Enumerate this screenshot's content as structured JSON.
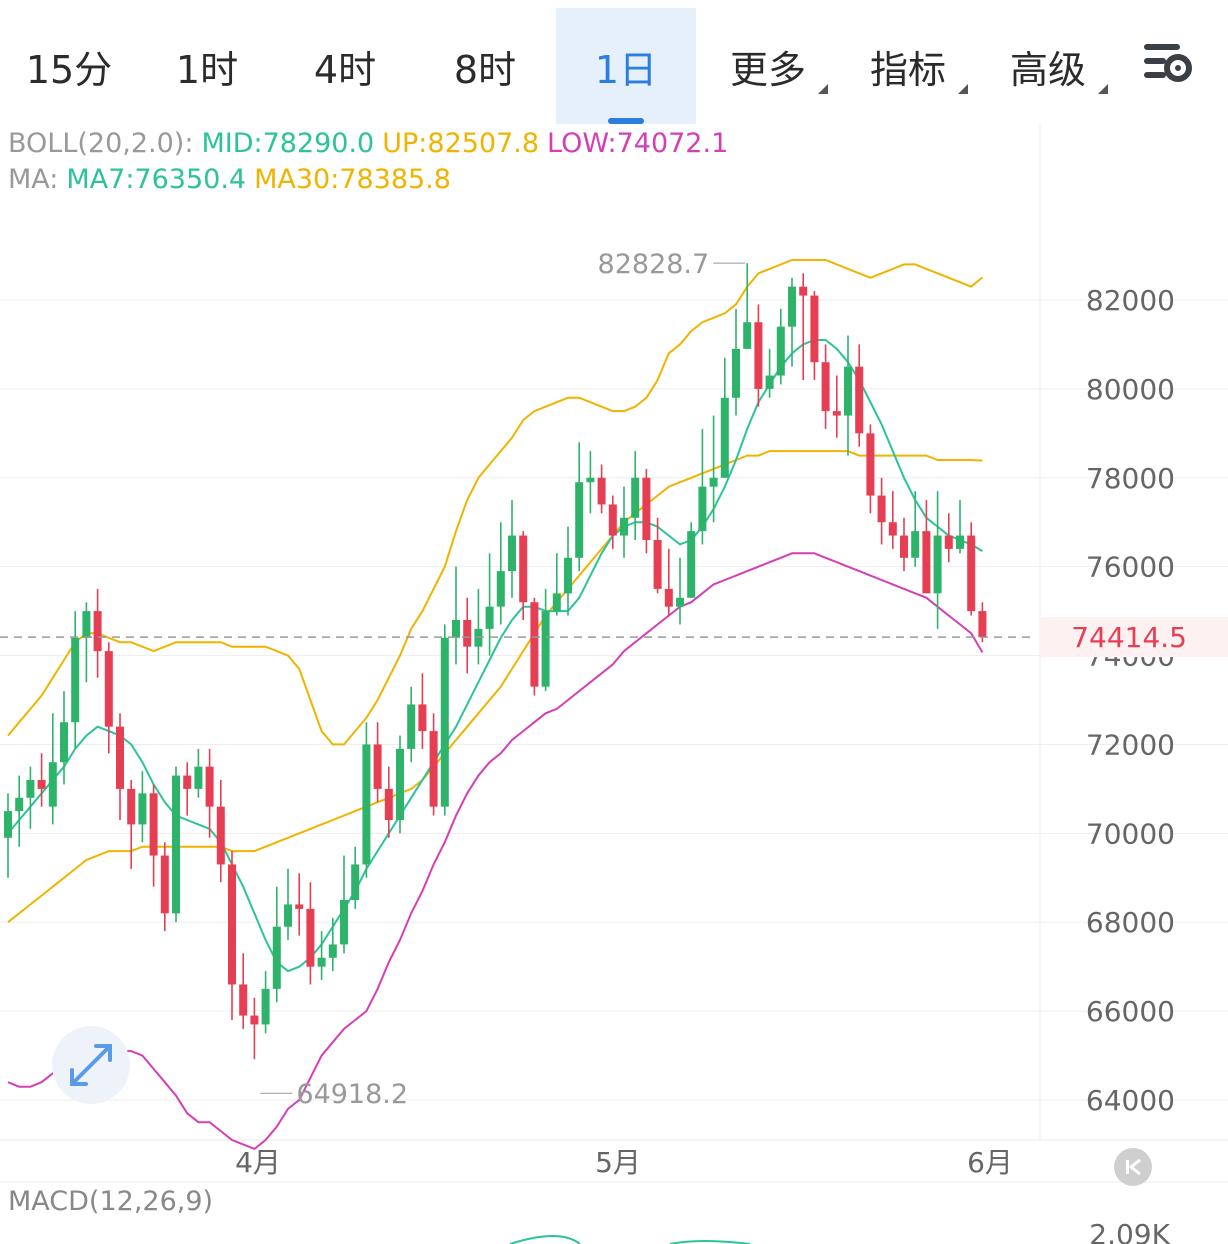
{
  "tabs": [
    {
      "label": "15分",
      "active": false,
      "caret": false
    },
    {
      "label": "1时",
      "active": false,
      "caret": false
    },
    {
      "label": "4时",
      "active": false,
      "caret": false
    },
    {
      "label": "8时",
      "active": false,
      "caret": false
    },
    {
      "label": "1日",
      "active": true,
      "caret": false
    },
    {
      "label": "更多",
      "active": false,
      "caret": true
    },
    {
      "label": "指标",
      "active": false,
      "caret": true
    },
    {
      "label": "高级",
      "active": false,
      "caret": true
    }
  ],
  "settings_icon": "chart-settings-icon",
  "boll": {
    "label": "BOLL(20,2.0):",
    "mid": "MID:78290.0",
    "up": "UP:82507.8",
    "low": "LOW:74072.1"
  },
  "ma": {
    "label": "MA:",
    "ma7": "MA7:76350.4",
    "ma30": "MA30:78385.8"
  },
  "macd": {
    "label": "MACD(12,26,9)",
    "tick": "2.09K"
  },
  "colors": {
    "rise": "#2db46a",
    "fall": "#e63e52",
    "mid": "#2cc39a",
    "up": "#f0b400",
    "low": "#d43fb5",
    "ma30": "#f0b400"
  },
  "chart_data": {
    "type": "candlestick",
    "y_ticks": [
      "82000",
      "80000",
      "78000",
      "76000",
      "74000",
      "72000",
      "70000",
      "68000",
      "66000",
      "64000"
    ],
    "x_labels": [
      "4月",
      "5月",
      "6月"
    ],
    "ylim": [
      63500,
      84000
    ],
    "high_annotation": "82828.7",
    "low_annotation": "64918.2",
    "last_price": "74414.5",
    "candles": [
      [
        69900,
        70500,
        70900,
        69000
      ],
      [
        70500,
        70800,
        71300,
        69700
      ],
      [
        70800,
        71200,
        71500,
        70100
      ],
      [
        71200,
        71000,
        71800,
        70600
      ],
      [
        70600,
        71600,
        72700,
        70200
      ],
      [
        71600,
        72500,
        73200,
        71100
      ],
      [
        72500,
        74400,
        75000,
        71900
      ],
      [
        74400,
        75000,
        75200,
        73400
      ],
      [
        75000,
        74100,
        75500,
        73500
      ],
      [
        74100,
        72400,
        74300,
        71800
      ],
      [
        72400,
        71000,
        72700,
        70300
      ],
      [
        71000,
        70200,
        71200,
        69200
      ],
      [
        70200,
        70900,
        71400,
        69800
      ],
      [
        70900,
        69500,
        71100,
        68800
      ],
      [
        69500,
        68200,
        69800,
        67800
      ],
      [
        68200,
        71300,
        71500,
        68000
      ],
      [
        71300,
        71000,
        71600,
        70400
      ],
      [
        71000,
        71500,
        71900,
        70800
      ],
      [
        71500,
        70600,
        71900,
        69900
      ],
      [
        70600,
        69300,
        71200,
        68900
      ],
      [
        69300,
        66600,
        69600,
        65800
      ],
      [
        66600,
        65900,
        67300,
        65600
      ],
      [
        65900,
        65700,
        66300,
        64918
      ],
      [
        65700,
        66500,
        66900,
        65500
      ],
      [
        66500,
        67900,
        68800,
        66200
      ],
      [
        67900,
        68400,
        69200,
        67600
      ],
      [
        68400,
        68300,
        69100,
        67700
      ],
      [
        68300,
        67000,
        68900,
        66600
      ],
      [
        67000,
        67200,
        67800,
        66700
      ],
      [
        67200,
        67500,
        68100,
        66900
      ],
      [
        67500,
        68500,
        69500,
        67300
      ],
      [
        68500,
        69300,
        69700,
        68300
      ],
      [
        69300,
        72000,
        72500,
        69000
      ],
      [
        72000,
        71000,
        72500,
        70700
      ],
      [
        71000,
        70300,
        71500,
        69900
      ],
      [
        70300,
        71900,
        72200,
        70000
      ],
      [
        71900,
        72900,
        73300,
        71600
      ],
      [
        72900,
        72300,
        73600,
        71900
      ],
      [
        72300,
        70600,
        72700,
        70400
      ],
      [
        70600,
        74400,
        74700,
        70400
      ],
      [
        74400,
        74800,
        76000,
        73800
      ],
      [
        74800,
        74200,
        75300,
        73600
      ],
      [
        74200,
        74600,
        75500,
        73800
      ],
      [
        74600,
        75100,
        76300,
        74000
      ],
      [
        75100,
        75900,
        77000,
        74700
      ],
      [
        75900,
        76700,
        77500,
        75300
      ],
      [
        76700,
        75200,
        76800,
        74800
      ],
      [
        75200,
        73300,
        75300,
        73100
      ],
      [
        73300,
        75000,
        75500,
        73200
      ],
      [
        75000,
        75400,
        76300,
        74900
      ],
      [
        75400,
        76200,
        76900,
        74900
      ],
      [
        76200,
        77900,
        78800,
        75900
      ],
      [
        77900,
        78000,
        78600,
        77200
      ],
      [
        78000,
        77400,
        78300,
        77200
      ],
      [
        77400,
        76700,
        77600,
        76400
      ],
      [
        76700,
        77100,
        77800,
        76200
      ],
      [
        77100,
        78000,
        78600,
        76600
      ],
      [
        78000,
        76600,
        78200,
        76300
      ],
      [
        76600,
        75500,
        77100,
        75400
      ],
      [
        75500,
        75100,
        76400,
        74900
      ],
      [
        75100,
        75300,
        76200,
        74700
      ],
      [
        75300,
        76800,
        77000,
        75300
      ],
      [
        76800,
        77800,
        79100,
        76500
      ],
      [
        77800,
        78000,
        79400,
        77000
      ],
      [
        78000,
        79800,
        80700,
        78000
      ],
      [
        79800,
        80900,
        81800,
        79400
      ],
      [
        80900,
        81500,
        82828,
        80900
      ],
      [
        81500,
        80000,
        81900,
        79600
      ],
      [
        80000,
        80300,
        80900,
        79800
      ],
      [
        80300,
        81400,
        81800,
        80100
      ],
      [
        81400,
        82300,
        82500,
        80500
      ],
      [
        82300,
        82100,
        82600,
        80200
      ],
      [
        82100,
        80600,
        82200,
        80200
      ],
      [
        80600,
        79500,
        81000,
        79100
      ],
      [
        79500,
        79400,
        80300,
        78900
      ],
      [
        79400,
        80500,
        81200,
        78500
      ],
      [
        80500,
        79000,
        81000,
        78700
      ],
      [
        79000,
        77600,
        79200,
        77200
      ],
      [
        77600,
        77000,
        78000,
        76500
      ],
      [
        77000,
        76700,
        77700,
        76400
      ],
      [
        76700,
        76200,
        77100,
        75900
      ],
      [
        76200,
        76800,
        77700,
        76000
      ],
      [
        76800,
        75400,
        77500,
        75400
      ],
      [
        75400,
        76700,
        77700,
        74600
      ],
      [
        76700,
        76400,
        77200,
        76100
      ],
      [
        76400,
        76700,
        77500,
        76300
      ],
      [
        76700,
        75000,
        77000,
        74900
      ],
      [
        75000,
        74414,
        75200,
        74300
      ]
    ],
    "mid": [
      68300,
      68600,
      68900,
      69200,
      69500,
      69600,
      69800,
      69900,
      69900,
      69800,
      69700,
      69700,
      69600,
      69400,
      69300,
      69200,
      69000,
      68900,
      68900,
      68600,
      68500,
      68400,
      68300,
      68400,
      68600,
      68900,
      69100,
      69300,
      69600,
      69800,
      70000,
      70200,
      70300,
      70500,
      70800,
      71000,
      71300,
      71700,
      72000,
      72300,
      72600,
      72900,
      73200,
      73500,
      73800,
      74100,
      74400,
      74700,
      75000,
      75200,
      75500,
      75700,
      75900,
      76000,
      76200,
      76200,
      76400,
      76700,
      76800,
      77100,
      77300,
      77700,
      78000,
      78300,
      78600,
      78800,
      78900,
      79000,
      79100,
      79100,
      79200,
      79300,
      79400,
      79400,
      79400,
      79400,
      79400,
      79300,
      79300,
      79200,
      79100,
      79000,
      78900,
      78800,
      78700,
      78600,
      78500,
      78290
    ],
    "up": [
      72200,
      72500,
      72800,
      73100,
      73500,
      73900,
      74300,
      74500,
      74500,
      74400,
      74300,
      74300,
      74200,
      74100,
      74200,
      74300,
      74300,
      74300,
      74300,
      74300,
      74200,
      74200,
      74200,
      74200,
      74100,
      74000,
      73700,
      73000,
      72300,
      72000,
      72000,
      72300,
      72600,
      73000,
      73500,
      74000,
      74600,
      75000,
      75500,
      76000,
      76800,
      77500,
      78000,
      78300,
      78600,
      78900,
      79300,
      79500,
      79600,
      79700,
      79800,
      79800,
      79700,
      79600,
      79500,
      79500,
      79600,
      79800,
      80200,
      80800,
      81000,
      81300,
      81500,
      81600,
      81700,
      81900,
      82300,
      82600,
      82700,
      82800,
      82900,
      82900,
      82900,
      82900,
      82800,
      82700,
      82600,
      82500,
      82600,
      82700,
      82800,
      82800,
      82700,
      82600,
      82500,
      82400,
      82300,
      82508
    ],
    "low": [
      64400,
      64300,
      64300,
      64400,
      64600,
      64800,
      65100,
      65300,
      65300,
      65200,
      65100,
      65100,
      65000,
      64700,
      64400,
      64100,
      63700,
      63500,
      63500,
      63300,
      63100,
      63000,
      62900,
      63100,
      63400,
      63800,
      64000,
      64500,
      65000,
      65300,
      65600,
      65800,
      66000,
      66500,
      67100,
      67600,
      68200,
      68700,
      69300,
      69800,
      70400,
      70900,
      71300,
      71600,
      71800,
      72100,
      72300,
      72500,
      72700,
      72800,
      73000,
      73200,
      73400,
      73600,
      73800,
      74100,
      74300,
      74500,
      74700,
      74900,
      75100,
      75200,
      75400,
      75600,
      75700,
      75800,
      75900,
      76000,
      76100,
      76200,
      76300,
      76300,
      76300,
      76200,
      76100,
      76000,
      75900,
      75800,
      75700,
      75600,
      75500,
      75400,
      75300,
      75100,
      74900,
      74700,
      74500,
      74072
    ],
    "ma7": [
      70000,
      70300,
      70600,
      70900,
      71200,
      71500,
      71900,
      72200,
      72400,
      72300,
      72200,
      72000,
      71600,
      71100,
      70700,
      70400,
      70300,
      70200,
      70100,
      69800,
      69300,
      68800,
      68200,
      67600,
      67100,
      66900,
      67000,
      67200,
      67500,
      67900,
      68300,
      68700,
      69200,
      69600,
      70000,
      70400,
      70800,
      71200,
      71600,
      72000,
      72400,
      72900,
      73400,
      73900,
      74400,
      74800,
      75100,
      75100,
      75000,
      75000,
      75000,
      75300,
      75800,
      76300,
      76700,
      76900,
      77000,
      77000,
      76900,
      76700,
      76500,
      76600,
      76900,
      77300,
      77800,
      78400,
      79100,
      79700,
      80100,
      80500,
      80800,
      81000,
      81100,
      81100,
      80900,
      80600,
      80200,
      79700,
      79200,
      78600,
      78000,
      77500,
      77100,
      76900,
      76700,
      76600,
      76500,
      76350
    ],
    "ma30": [
      68000,
      68200,
      68400,
      68600,
      68800,
      69000,
      69200,
      69400,
      69500,
      69600,
      69600,
      69600,
      69700,
      69700,
      69700,
      69700,
      69700,
      69700,
      69700,
      69700,
      69600,
      69600,
      69600,
      69700,
      69800,
      69900,
      70000,
      70100,
      70200,
      70300,
      70400,
      70500,
      70600,
      70700,
      70800,
      70900,
      71000,
      71200,
      71500,
      71800,
      72100,
      72400,
      72700,
      73000,
      73300,
      73700,
      74100,
      74500,
      74900,
      75200,
      75500,
      75800,
      76100,
      76400,
      76700,
      77000,
      77200,
      77400,
      77600,
      77800,
      77900,
      78000,
      78100,
      78200,
      78300,
      78400,
      78500,
      78500,
      78600,
      78600,
      78600,
      78600,
      78600,
      78600,
      78600,
      78600,
      78500,
      78500,
      78500,
      78500,
      78500,
      78500,
      78500,
      78400,
      78400,
      78400,
      78400,
      78386
    ]
  }
}
